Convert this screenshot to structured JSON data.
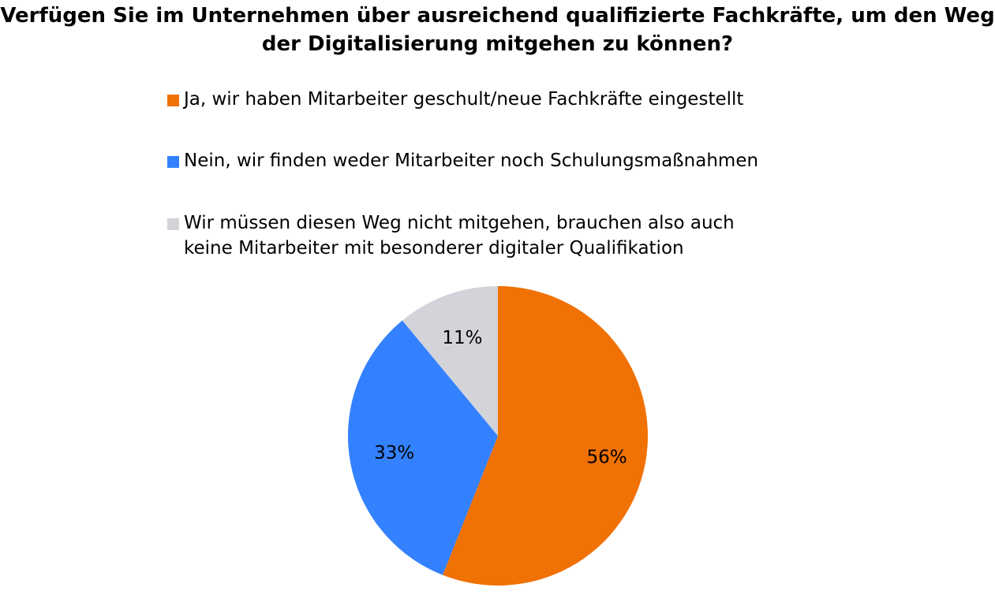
{
  "chart_data": {
    "type": "pie",
    "title": "Verfügen Sie im Unternehmen über ausreichend qualifizierte Fachkräfte, um den Weg der Digitalisierung mitgehen zu können?",
    "legend_position": "top",
    "slices": [
      {
        "label": "Ja, wir haben Mitarbeiter geschult/neue Fachkräfte eingestellt",
        "value": 56,
        "display": "56%",
        "color": "#F07104"
      },
      {
        "label": "Nein, wir finden weder Mitarbeiter noch Schulungsmaßnahmen",
        "value": 33,
        "display": "33%",
        "color": "#3381FE"
      },
      {
        "label": "Wir müssen diesen Weg nicht mitgehen, brauchen also auch\nkeine Mitarbeiter mit besonderer digitaler Qualifikation",
        "value": 11,
        "display": "11%",
        "color": "#D3D3DA"
      }
    ]
  }
}
